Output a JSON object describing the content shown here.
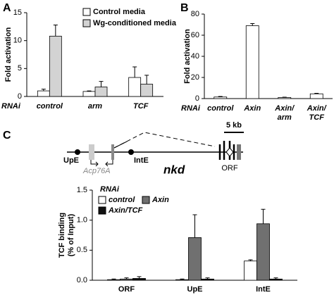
{
  "panels": [
    "A",
    "B",
    "C"
  ],
  "diagram": {
    "scale": "5 kb",
    "upstream": "UpE",
    "neighbor_gene": "Acp76A",
    "intronic": "IntE",
    "gene": "nkd",
    "orf": "ORF"
  },
  "chart_data": [
    {
      "type": "bar",
      "ylabel": [
        "Fold activation"
      ],
      "xlabel": "RNAi",
      "categories": [
        "control",
        "arm",
        "TCF"
      ],
      "series": [
        {
          "name": "Control media",
          "color": "#ffffff",
          "values": [
            1.0,
            0.9,
            3.4
          ],
          "errors": [
            0.3,
            0.1,
            1.9
          ]
        },
        {
          "name": "Wg-conditioned media",
          "color": "#d3d3d3",
          "values": [
            10.8,
            1.7,
            2.2
          ],
          "errors": [
            2.0,
            1.0,
            1.6
          ]
        }
      ],
      "ylim": [
        0,
        15
      ],
      "yticks": [
        0,
        5,
        10,
        15
      ]
    },
    {
      "type": "bar",
      "ylabel": [
        "Fold activation"
      ],
      "xlabel": "RNAi",
      "categories": [
        "control",
        "Axin",
        [
          "Axin/",
          "arm"
        ],
        [
          "Axin/",
          "TCF"
        ]
      ],
      "series": [
        {
          "color": "#ffffff",
          "values": [
            1.5,
            69,
            1,
            4.5
          ],
          "errors": [
            0.5,
            2,
            0.3,
            0.5
          ]
        }
      ],
      "ylim": [
        0,
        80
      ],
      "yticks": [
        0,
        20,
        40,
        60,
        80
      ]
    },
    {
      "type": "bar",
      "ylabel": [
        "TCF binding",
        "(% of Input)"
      ],
      "legend_title": "RNAi",
      "categories": [
        "ORF",
        "UpE",
        "IntE"
      ],
      "series": [
        {
          "name": "control",
          "color": "#ffffff",
          "values": [
            0.01,
            0.01,
            0.32
          ],
          "errors": [
            0.01,
            0.01,
            0.02
          ]
        },
        {
          "name": "Axin",
          "color": "#707070",
          "values": [
            0.02,
            0.71,
            0.94
          ],
          "errors": [
            0.02,
            0.38,
            0.24
          ]
        },
        {
          "name": "Axin/TCF",
          "color": "#111111",
          "values": [
            0.03,
            0.02,
            0.02
          ],
          "errors": [
            0.03,
            0.02,
            0.02
          ]
        }
      ],
      "ylim": [
        0,
        1.5
      ],
      "yticks": [
        {
          "value": 0,
          "label": "0.0"
        },
        0.5,
        {
          "value": 1,
          "label": "1.0"
        },
        1.5
      ]
    }
  ]
}
